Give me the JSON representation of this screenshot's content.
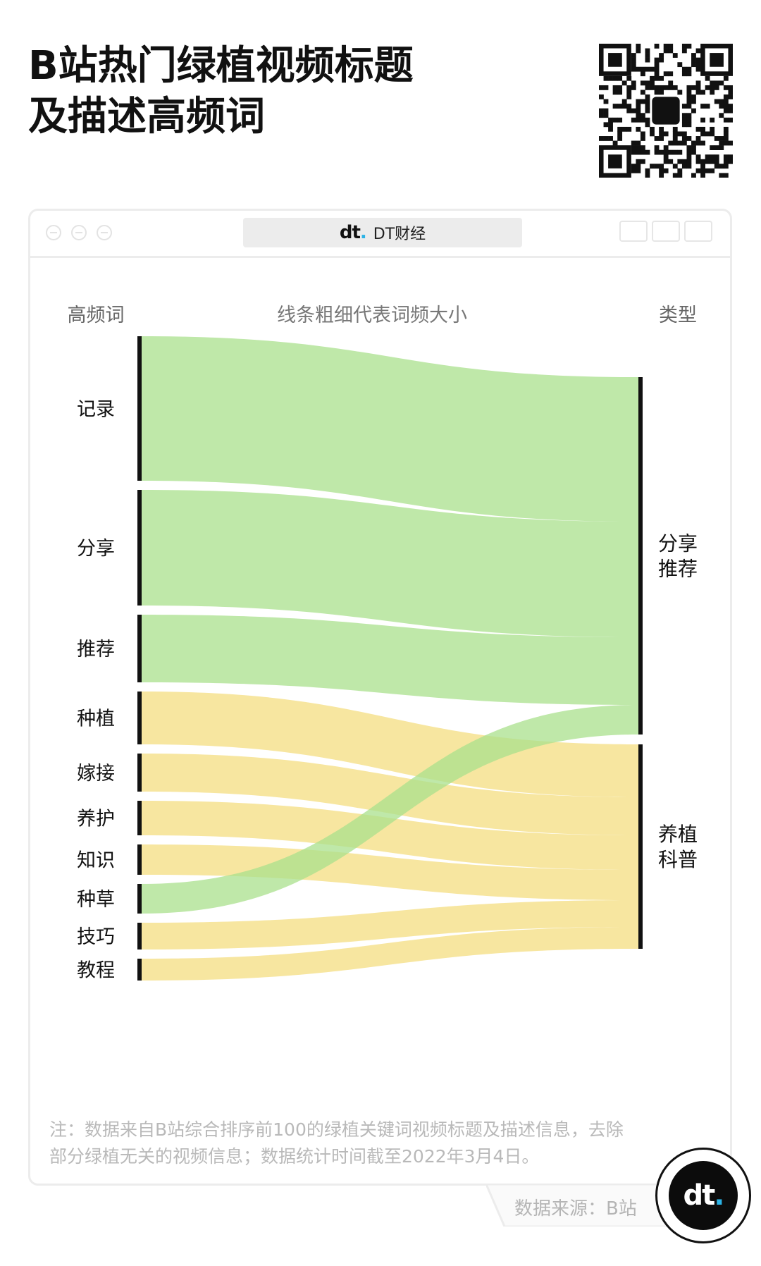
{
  "title_lines": [
    "B站热门绿植视频标题",
    "及描述高频词"
  ],
  "brand": {
    "logo": "dt",
    "name": "DT财经"
  },
  "colors": {
    "green": "#a9e08c",
    "yellow": "#f4dd80",
    "bar": "#111111"
  },
  "chart_data": {
    "type": "sankey",
    "left_header": "高频词",
    "center_header": "线条粗细代表词频大小",
    "right_header": "类型",
    "sources": [
      {
        "name": "记录",
        "value": 205,
        "target": "分享推荐"
      },
      {
        "name": "分享",
        "value": 164,
        "target": "分享推荐"
      },
      {
        "name": "推荐",
        "value": 96,
        "target": "分享推荐"
      },
      {
        "name": "种植",
        "value": 75,
        "target": "养植科普"
      },
      {
        "name": "嫁接",
        "value": 54,
        "target": "养植科普"
      },
      {
        "name": "养护",
        "value": 49,
        "target": "养植科普"
      },
      {
        "name": "知识",
        "value": 43,
        "target": "养植科普"
      },
      {
        "name": "种草",
        "value": 42,
        "target": "分享推荐"
      },
      {
        "name": "技巧",
        "value": 38,
        "target": "养植科普"
      },
      {
        "name": "教程",
        "value": 31,
        "target": "养植科普"
      }
    ],
    "targets": [
      {
        "name": "分享推荐",
        "lines": [
          "分享",
          "推荐"
        ],
        "color": "#a9e08c"
      },
      {
        "name": "养植科普",
        "lines": [
          "养植",
          "科普"
        ],
        "color": "#f4dd80"
      }
    ]
  },
  "note_lines": [
    "注：数据来自B站综合排序前100的绿植关键词视频标题及描述信息，去除",
    "部分绿植无关的视频信息；数据统计时间截至2022年3月4日。"
  ],
  "source_text": "数据来源：B站",
  "icons": {
    "window_buttons": [
      "close-icon",
      "minimize-icon",
      "maximize-icon"
    ],
    "window_tools": [
      "record-icon",
      "share-icon",
      "copy-icon"
    ]
  }
}
